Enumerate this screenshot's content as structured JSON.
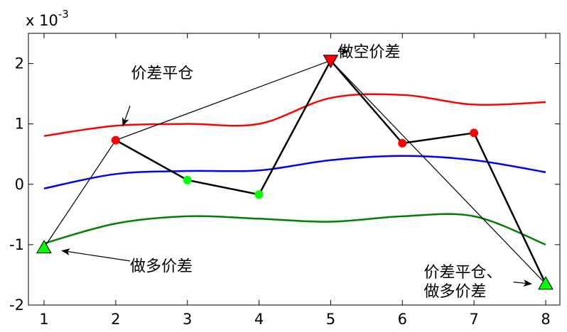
{
  "chart_data": {
    "type": "line",
    "title": "",
    "xlabel": "",
    "ylabel": "",
    "y_multiplier_label": "x 10",
    "y_multiplier_exponent": "-3",
    "xlim": [
      1,
      8
    ],
    "ylim": [
      -2,
      2.5
    ],
    "x_ticks": [
      1,
      2,
      3,
      4,
      5,
      6,
      7,
      8
    ],
    "y_ticks": [
      -2,
      -1,
      0,
      1,
      2
    ],
    "grid": false,
    "x": [
      1,
      2,
      3,
      4,
      5,
      6,
      7,
      8
    ],
    "series": [
      {
        "role": "upper-band",
        "color": "#ff0000",
        "values": [
          0.8,
          0.97,
          1.0,
          1.0,
          1.43,
          1.48,
          1.32,
          1.36
        ]
      },
      {
        "role": "middle-band",
        "color": "#0000ff",
        "values": [
          -0.07,
          0.17,
          0.22,
          0.23,
          0.4,
          0.47,
          0.4,
          0.2
        ]
      },
      {
        "role": "lower-band",
        "color": "#008000",
        "values": [
          -0.98,
          -0.65,
          -0.53,
          -0.57,
          -0.62,
          -0.53,
          -0.53,
          -1.0
        ]
      },
      {
        "role": "spread-thin",
        "color": "#000000",
        "points": [
          [
            1,
            -1.05
          ],
          [
            2,
            0.73
          ],
          [
            5,
            2.05
          ],
          [
            8,
            -1.65
          ]
        ]
      },
      {
        "role": "spread-thick",
        "color": "#000000",
        "points": [
          [
            2,
            0.73
          ],
          [
            3,
            0.07
          ],
          [
            4,
            -0.17
          ],
          [
            5,
            2.05
          ],
          [
            6,
            0.68
          ],
          [
            7,
            0.85
          ],
          [
            8,
            -1.65
          ]
        ]
      }
    ],
    "markers": [
      {
        "x": 1,
        "y": -1.05,
        "shape": "triangle-up",
        "color": "#00ff00"
      },
      {
        "x": 2,
        "y": 0.73,
        "shape": "circle",
        "color": "#ff0000"
      },
      {
        "x": 3,
        "y": 0.07,
        "shape": "circle",
        "color": "#00ff00"
      },
      {
        "x": 4,
        "y": -0.17,
        "shape": "circle",
        "color": "#00ff00"
      },
      {
        "x": 5,
        "y": 2.05,
        "shape": "triangle-down",
        "color": "#ff0000"
      },
      {
        "x": 6,
        "y": 0.68,
        "shape": "circle",
        "color": "#ff0000"
      },
      {
        "x": 7,
        "y": 0.85,
        "shape": "circle",
        "color": "#ff0000"
      },
      {
        "x": 8,
        "y": -1.65,
        "shape": "triangle-up",
        "color": "#00ff00"
      }
    ],
    "annotations": [
      {
        "lines": [
          "价差平仓"
        ],
        "text_at": [
          2.65,
          1.85
        ],
        "anchor": "middle",
        "arrow_from": [
          2.2,
          1.3
        ],
        "arrow_to": [
          2.1,
          0.97
        ]
      },
      {
        "lines": [
          "做空价差"
        ],
        "text_at": [
          5.1,
          2.2
        ],
        "anchor": "start",
        "arrow_from": [
          5.1,
          2.2
        ],
        "arrow_to": [
          5.25,
          2.2
        ]
      },
      {
        "lines": [
          "做多价差"
        ],
        "text_at": [
          2.2,
          -1.35
        ],
        "anchor": "start",
        "arrow_from": [
          2.2,
          -1.27
        ],
        "arrow_to": [
          1.25,
          -1.1
        ]
      },
      {
        "lines": [
          "价差平仓、",
          "做多价差"
        ],
        "text_at": [
          6.3,
          -1.45
        ],
        "anchor": "start",
        "arrow_from": [
          7.55,
          -1.62
        ],
        "arrow_to": [
          7.8,
          -1.65
        ]
      }
    ]
  }
}
